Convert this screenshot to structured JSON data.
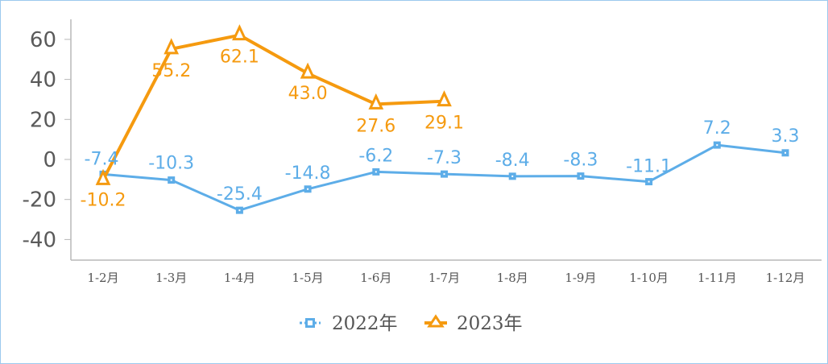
{
  "chart_data": {
    "type": "line",
    "title": "",
    "xlabel": "",
    "ylabel": "",
    "ylim": [
      -50,
      70
    ],
    "yticks": [
      60,
      40,
      20,
      0,
      -20,
      -40
    ],
    "grid": false,
    "legend_position": "bottom",
    "categories": [
      "1-2月",
      "1-3月",
      "1-4月",
      "1-5月",
      "1-6月",
      "1-7月",
      "1-8月",
      "1-9月",
      "1-10月",
      "1-11月",
      "1-12月"
    ],
    "series": [
      {
        "name": "2022年",
        "color": "#5dade8",
        "marker": "square",
        "values": [
          -7.4,
          -10.3,
          -25.4,
          -14.8,
          -6.2,
          -7.3,
          -8.4,
          -8.3,
          -11.1,
          7.2,
          3.3
        ]
      },
      {
        "name": "2023年",
        "color": "#f59a0f",
        "marker": "triangle",
        "values": [
          -10.2,
          55.2,
          62.1,
          43.0,
          27.6,
          29.1
        ]
      }
    ]
  },
  "colors": {
    "series_2022": "#5dade8",
    "series_2023": "#f59a0f",
    "axis": "#b8b8b8",
    "border": "#9cc9ee"
  }
}
